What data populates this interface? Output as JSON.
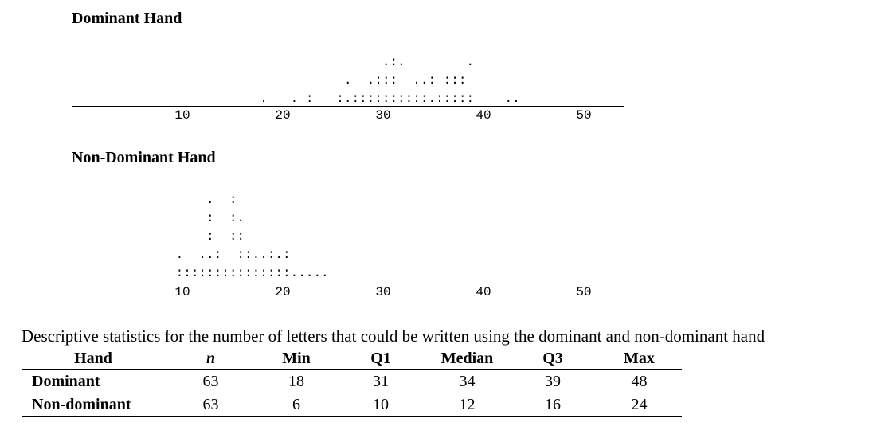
{
  "chart_data": [
    {
      "type": "dotplot",
      "title": "Dominant Hand",
      "ticks": [
        10,
        20,
        30,
        40,
        50
      ],
      "xlim": [
        5,
        53
      ],
      "dot_rows": [
        "                                 .:.        .",
        "                            .  .:::  ..: :::",
        "                 .   . :   :.::::::::::.:::::    ..",
        ""
      ]
    },
    {
      "type": "dotplot",
      "title": "Non-Dominant Hand",
      "ticks": [
        10,
        20,
        30,
        40,
        50
      ],
      "xlim": [
        5,
        53
      ],
      "dot_rows": [
        "          .  :",
        "          :  :.",
        "          :  ::",
        "      .  ..:  ::..:.:",
        "      :::::::::::::::....."
      ]
    }
  ],
  "table": {
    "caption": "Descriptive statistics for the number of letters that could be written using the dominant and non-dominant hand",
    "headers": [
      "Hand",
      "n",
      "Min",
      "Q1",
      "Median",
      "Q3",
      "Max"
    ],
    "rows": [
      [
        "Dominant",
        "63",
        "18",
        "31",
        "34",
        "39",
        "48"
      ],
      [
        "Non-dominant",
        "63",
        "6",
        "10",
        "12",
        "16",
        "24"
      ]
    ]
  }
}
